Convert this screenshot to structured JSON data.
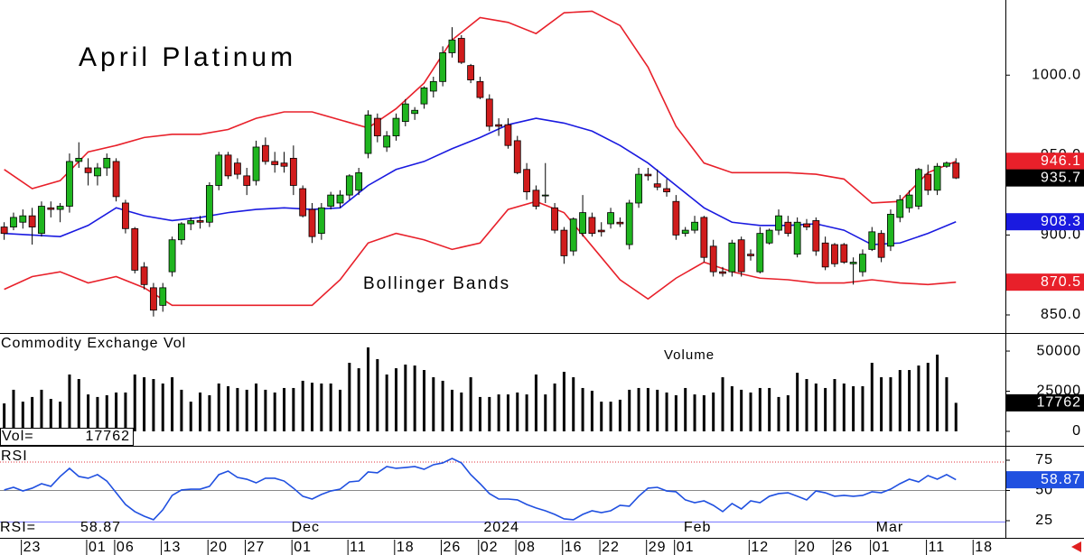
{
  "chart_data": [
    {
      "type": "candlestick",
      "title": "April Platinum",
      "annotation": "Bollinger Bands",
      "xlim": [
        -0.45,
        107.3
      ],
      "ylim": [
        838.7,
        1047
      ],
      "yticks": [
        {
          "value": 850,
          "label": "850.0"
        },
        {
          "value": 900,
          "label": "900.0"
        },
        {
          "value": 950,
          "label": "950.0"
        },
        {
          "value": 1000,
          "label": "1000.0"
        }
      ],
      "up_color": "#1fb51f",
      "down_color": "#d01c1c",
      "candles": [
        [
          905,
          908,
          897,
          901
        ],
        [
          905,
          914,
          903,
          911
        ],
        [
          908,
          916,
          904,
          912
        ],
        [
          912,
          917,
          894,
          905
        ],
        [
          901,
          921,
          899,
          918
        ],
        [
          917,
          921,
          911,
          916
        ],
        [
          916,
          920,
          908,
          918
        ],
        [
          918,
          951,
          914,
          946
        ],
        [
          946,
          958,
          942,
          948
        ],
        [
          942,
          948,
          931,
          939
        ],
        [
          937,
          945,
          931,
          942
        ],
        [
          942,
          951,
          937,
          948
        ],
        [
          946,
          948,
          921,
          924
        ],
        [
          920,
          922,
          901,
          904
        ],
        [
          904,
          905,
          876,
          878
        ],
        [
          880,
          883,
          866,
          869
        ],
        [
          867,
          870,
          849,
          853
        ],
        [
          856,
          870,
          852,
          867
        ],
        [
          877,
          899,
          874,
          897
        ],
        [
          897,
          908,
          894,
          907
        ],
        [
          907,
          911,
          903,
          909
        ],
        [
          909,
          912,
          904,
          908
        ],
        [
          908,
          933,
          905,
          931
        ],
        [
          931,
          952,
          928,
          950
        ],
        [
          950,
          952,
          935,
          937
        ],
        [
          945,
          948,
          935,
          938
        ],
        [
          937,
          942,
          925,
          931
        ],
        [
          934,
          959,
          931,
          955
        ],
        [
          956,
          961,
          944,
          946
        ],
        [
          946,
          952,
          939,
          944
        ],
        [
          945,
          952,
          939,
          943
        ],
        [
          948,
          956,
          925,
          931
        ],
        [
          929,
          931,
          911,
          912
        ],
        [
          916,
          920,
          895,
          899
        ],
        [
          901,
          920,
          897,
          917
        ],
        [
          918,
          927,
          916,
          925
        ],
        [
          920,
          928,
          917,
          925
        ],
        [
          925,
          938,
          922,
          937
        ],
        [
          928,
          942,
          925,
          939
        ],
        [
          951,
          978,
          948,
          975
        ],
        [
          973,
          976,
          958,
          962
        ],
        [
          955,
          965,
          952,
          962
        ],
        [
          962,
          976,
          959,
          973
        ],
        [
          971,
          985,
          968,
          982
        ],
        [
          976,
          980,
          972,
          978
        ],
        [
          982,
          993,
          979,
          992
        ],
        [
          990,
          999,
          986,
          996
        ],
        [
          996,
          1018,
          993,
          1014
        ],
        [
          1014,
          1030,
          1011,
          1022
        ],
        [
          1023,
          1025,
          1007,
          1008
        ],
        [
          1006,
          1007,
          995,
          997
        ],
        [
          996,
          999,
          985,
          986
        ],
        [
          985,
          988,
          965,
          968
        ],
        [
          969,
          973,
          962,
          968
        ],
        [
          969,
          973,
          954,
          956
        ],
        [
          959,
          962,
          938,
          939
        ],
        [
          941,
          945,
          922,
          927
        ],
        [
          928,
          931,
          916,
          918
        ],
        [
          925,
          945,
          920,
          925
        ],
        [
          917,
          920,
          901,
          903
        ],
        [
          903,
          905,
          882,
          887
        ],
        [
          890,
          911,
          887,
          910
        ],
        [
          901,
          925,
          899,
          914
        ],
        [
          911,
          914,
          899,
          901
        ],
        [
          903,
          908,
          899,
          902
        ],
        [
          907,
          917,
          904,
          914
        ],
        [
          908,
          911,
          905,
          907
        ],
        [
          894,
          922,
          891,
          920
        ],
        [
          920,
          942,
          917,
          938
        ],
        [
          938,
          942,
          934,
          937
        ],
        [
          932,
          941,
          928,
          930
        ],
        [
          929,
          935,
          924,
          927
        ],
        [
          921,
          925,
          897,
          900
        ],
        [
          901,
          905,
          899,
          903
        ],
        [
          903,
          912,
          901,
          908
        ],
        [
          911,
          912,
          883,
          886
        ],
        [
          893,
          897,
          874,
          877
        ],
        [
          877,
          880,
          874,
          876
        ],
        [
          877,
          897,
          874,
          895
        ],
        [
          897,
          899,
          874,
          877
        ],
        [
          888,
          891,
          884,
          887
        ],
        [
          877,
          905,
          876,
          901
        ],
        [
          895,
          904,
          894,
          903
        ],
        [
          903,
          916,
          900,
          912
        ],
        [
          908,
          912,
          899,
          901
        ],
        [
          888,
          911,
          886,
          908
        ],
        [
          907,
          910,
          903,
          905
        ],
        [
          909,
          911,
          887,
          890
        ],
        [
          895,
          899,
          878,
          880
        ],
        [
          894,
          895,
          880,
          882
        ],
        [
          894,
          895,
          882,
          883
        ],
        [
          882,
          886,
          869,
          883
        ],
        [
          877,
          891,
          874,
          888
        ],
        [
          891,
          905,
          890,
          902
        ],
        [
          901,
          903,
          883,
          886
        ],
        [
          893,
          916,
          890,
          913
        ],
        [
          911,
          925,
          908,
          922
        ],
        [
          917,
          928,
          914,
          925
        ],
        [
          918,
          942,
          916,
          941
        ],
        [
          938,
          944,
          925,
          928
        ],
        [
          928,
          945,
          925,
          943
        ],
        [
          943,
          946,
          942,
          945
        ],
        [
          945,
          948,
          935,
          935.7
        ]
      ],
      "x": [
        0,
        3,
        6,
        9,
        12,
        15,
        18,
        21,
        24,
        27,
        30,
        33,
        36,
        39,
        42,
        45,
        48,
        51,
        54,
        57,
        60,
        63,
        66,
        69,
        72,
        75,
        78,
        81,
        84,
        87,
        90,
        93,
        96,
        99,
        102
      ],
      "series": [
        {
          "color": "#e8202a",
          "values": [
            941,
            929,
            934,
            952,
            956,
            961,
            963,
            963,
            966,
            973,
            977,
            977,
            972,
            967,
            979,
            995,
            1022,
            1036,
            1033,
            1026,
            1039,
            1040,
            1031,
            1005,
            968,
            945,
            939,
            939,
            939,
            938,
            935,
            920,
            921,
            939,
            946.1
          ]
        },
        {
          "color": "#1a1ae0",
          "values": [
            901,
            900,
            899,
            906,
            917,
            912,
            909,
            911,
            914,
            916,
            917,
            916,
            917,
            931,
            941,
            946,
            954,
            961,
            969,
            973,
            970,
            965,
            956,
            945,
            931,
            917,
            908,
            906,
            906,
            907,
            903,
            894,
            895,
            901,
            908.3
          ]
        },
        {
          "color": "#e8202a",
          "values": [
            866,
            874,
            877,
            870,
            874,
            867,
            856,
            856,
            856,
            856,
            856,
            856,
            872,
            895,
            901,
            897,
            891,
            895,
            916,
            921,
            914,
            893,
            872,
            860,
            873,
            883,
            877,
            873,
            872,
            870,
            870,
            872,
            870,
            869,
            870.5
          ]
        }
      ]
    },
    {
      "type": "bar",
      "title": "Commodity Exchange Vol",
      "annotation": "Volume",
      "readout_label": "Vol=",
      "xlim": [
        -0.45,
        107.3
      ],
      "ylim": [
        -9000,
        60700
      ],
      "yticks": [
        0,
        25000,
        50000
      ],
      "color": "#000000",
      "values": [
        17400,
        25900,
        18500,
        21400,
        25900,
        20200,
        18500,
        35400,
        32600,
        23000,
        21400,
        22500,
        24200,
        24200,
        35400,
        33700,
        32600,
        29800,
        33700,
        25900,
        18500,
        24200,
        22500,
        29800,
        28100,
        27000,
        25900,
        29800,
        25900,
        24200,
        27000,
        27000,
        31500,
        30300,
        29800,
        29800,
        25900,
        42700,
        39300,
        52300,
        45000,
        35400,
        39300,
        41600,
        41000,
        38200,
        33700,
        31500,
        25900,
        24200,
        33700,
        21400,
        21400,
        23000,
        23000,
        24200,
        23000,
        35400,
        23000,
        29800,
        37100,
        33700,
        27000,
        25300,
        18500,
        18500,
        19700,
        25900,
        27000,
        27000,
        25900,
        24200,
        22500,
        27000,
        23000,
        22500,
        24200,
        33700,
        28100,
        25900,
        24200,
        27000,
        27000,
        21400,
        22500,
        36500,
        32600,
        29800,
        27000,
        32600,
        29800,
        28100,
        28100,
        42700,
        33700,
        33700,
        38200,
        38200,
        41000,
        42700,
        47800,
        33700,
        17762
      ]
    },
    {
      "type": "line",
      "title": "RSI",
      "readout_label": "RSI=",
      "xlim": [
        -0.45,
        107.3
      ],
      "ylim": [
        10.8,
        86.2
      ],
      "yticks": [
        25,
        50,
        75
      ],
      "color": "#2050e0",
      "reference_lines": [
        {
          "value": 73.5,
          "color": "#e0303a",
          "dashed": true
        },
        {
          "value": 50,
          "color": "#8a8a8a"
        },
        {
          "value": 24,
          "color": "#7070ff"
        }
      ],
      "values": [
        50.4,
        52.6,
        49.6,
        51.9,
        55.6,
        53.4,
        61.6,
        68.3,
        61.6,
        60.1,
        63.1,
        57.8,
        48.1,
        38.4,
        32.5,
        28.7,
        25.8,
        34,
        45.9,
        50.4,
        51.1,
        51.1,
        53.4,
        63.1,
        66,
        60.8,
        59.3,
        56.3,
        60.1,
        60.1,
        57.8,
        51.9,
        45.2,
        42.9,
        46.7,
        49.6,
        51.1,
        57.1,
        57.8,
        65.3,
        64.6,
        69.8,
        68.3,
        69,
        69.8,
        67.5,
        71.3,
        72.8,
        76.5,
        72.8,
        63.1,
        55.6,
        47.4,
        42.9,
        42.9,
        42.2,
        38.4,
        35.5,
        33.2,
        30.2,
        26.5,
        25.8,
        30.2,
        33.2,
        31.7,
        33.2,
        37.7,
        37,
        45.2,
        51.9,
        52.6,
        49.6,
        48.9,
        42.2,
        39.9,
        41.4,
        37.7,
        32.5,
        39.2,
        34.7,
        41.4,
        39.9,
        45.2,
        47.4,
        48.1,
        45.2,
        42.2,
        49.6,
        48.1,
        45.2,
        45.9,
        45.2,
        45.9,
        48.9,
        48.1,
        51.1,
        55.6,
        59.3,
        57.1,
        62.3,
        59.3,
        63.1,
        58.87
      ],
      "month_labels": [
        {
          "value": 32.3,
          "label": "Dec"
        },
        {
          "value": 53.3,
          "label": "2024"
        },
        {
          "value": 74.3,
          "label": "Feb"
        },
        {
          "value": 94.9,
          "label": "Mar"
        }
      ],
      "xticks": [
        {
          "value": 3,
          "label": "23"
        },
        {
          "value": 10,
          "label": "01"
        },
        {
          "value": 13,
          "label": "06"
        },
        {
          "value": 18,
          "label": "13"
        },
        {
          "value": 23,
          "label": "20"
        },
        {
          "value": 27,
          "label": "27"
        },
        {
          "value": 32,
          "label": "01"
        },
        {
          "value": 38,
          "label": "11"
        },
        {
          "value": 43,
          "label": "18"
        },
        {
          "value": 48,
          "label": "26"
        },
        {
          "value": 52,
          "label": "02"
        },
        {
          "value": 56,
          "label": "08"
        },
        {
          "value": 61,
          "label": "16"
        },
        {
          "value": 65,
          "label": "22"
        },
        {
          "value": 70,
          "label": "29"
        },
        {
          "value": 73,
          "label": "01"
        },
        {
          "value": 81,
          "label": "12"
        },
        {
          "value": 86,
          "label": "20"
        },
        {
          "value": 90,
          "label": "26"
        },
        {
          "value": 94,
          "label": "01"
        },
        {
          "value": 100,
          "label": "11"
        },
        {
          "value": 105,
          "label": "18"
        }
      ]
    }
  ]
}
